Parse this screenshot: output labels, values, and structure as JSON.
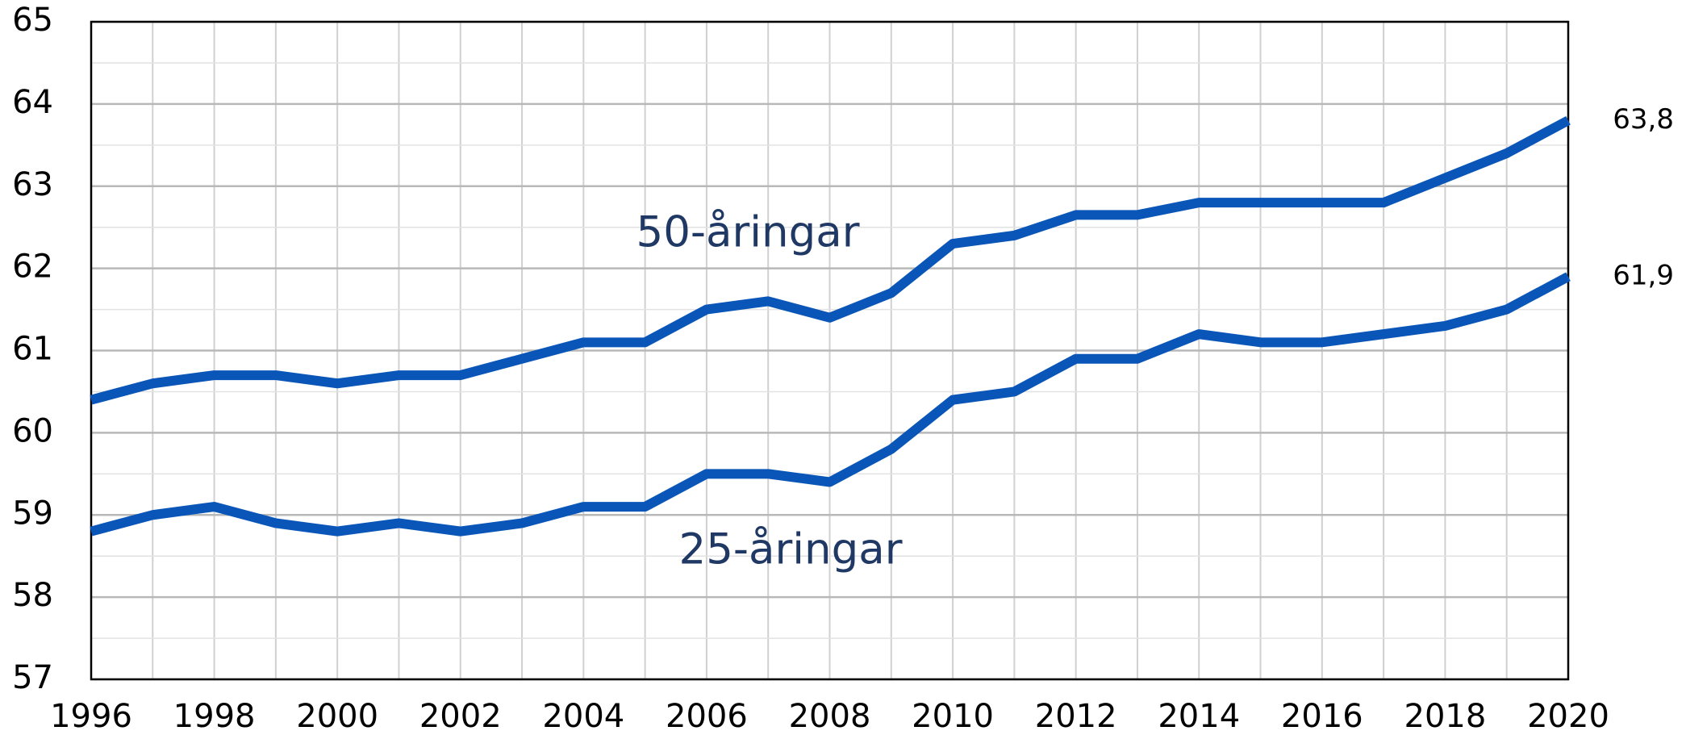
{
  "chart_data": {
    "type": "line",
    "x": [
      1996,
      1997,
      1998,
      1999,
      2000,
      2001,
      2002,
      2003,
      2004,
      2005,
      2006,
      2007,
      2008,
      2009,
      2010,
      2011,
      2012,
      2013,
      2014,
      2015,
      2016,
      2017,
      2018,
      2019,
      2020
    ],
    "series": [
      {
        "name": "50-åringar",
        "color": "#0a56b8",
        "values": [
          60.4,
          60.6,
          60.7,
          60.7,
          60.6,
          60.7,
          60.7,
          60.9,
          61.1,
          61.1,
          61.5,
          61.6,
          61.4,
          61.7,
          62.3,
          62.4,
          62.65,
          62.65,
          62.8,
          62.8,
          62.8,
          62.8,
          63.1,
          63.4,
          63.8
        ],
        "end_label": "63,8"
      },
      {
        "name": "25-åringar",
        "color": "#0a56b8",
        "values": [
          58.8,
          59.0,
          59.1,
          58.9,
          58.8,
          58.9,
          58.8,
          58.9,
          59.1,
          59.1,
          59.5,
          59.5,
          59.4,
          59.8,
          60.4,
          60.5,
          60.9,
          60.9,
          61.2,
          61.1,
          61.1,
          61.2,
          61.3,
          61.5,
          61.9
        ],
        "end_label": "61,9"
      }
    ],
    "xlim": [
      1996,
      2020
    ],
    "xticks": [
      1996,
      1998,
      2000,
      2002,
      2004,
      2006,
      2008,
      2010,
      2012,
      2014,
      2016,
      2018,
      2020
    ],
    "ylim": [
      57,
      65
    ],
    "yticks": [
      57,
      58,
      59,
      60,
      61,
      62,
      63,
      64,
      65
    ],
    "y_minor_ticks": [
      57.5,
      58.5,
      59.5,
      60.5,
      61.5,
      62.5,
      63.5,
      64.5
    ],
    "grid": true
  }
}
